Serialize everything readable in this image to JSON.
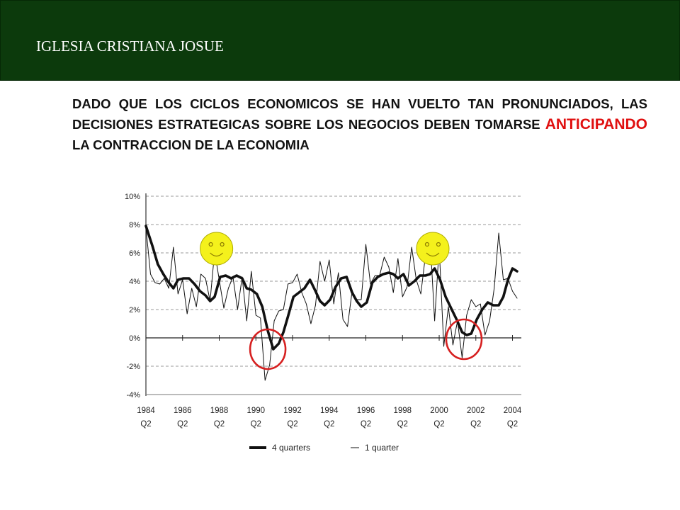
{
  "header": {
    "title": "IGLESIA CRISTIANA JOSUE"
  },
  "body": {
    "text_before": "DADO QUE LOS CICLOS ECONOMICOS SE HAN VUELTO TAN PRONUNCIADOS, LAS DECISIONES ESTRATEGICAS SOBRE LOS NEGOCIOS DEBEN TOMARSE",
    "emphasis": "ANTICIPANDO",
    "text_after": "LA CONTRACCION DE LA ECONOMIA"
  },
  "colors": {
    "header_bg": "#0c3a0c",
    "emphasis": "#e01010",
    "circle": "#d62020",
    "smiley": "#f4f11c"
  },
  "icons": [
    "smiley-face-icon",
    "red-circle-highlight"
  ],
  "chart_data": {
    "type": "line",
    "y_tick_labels": [
      "10%",
      "8%",
      "6%",
      "4%",
      "2%",
      "0%",
      "-2%",
      "-4%"
    ],
    "y_ticks": [
      10,
      8,
      6,
      4,
      2,
      0,
      -2,
      -4
    ],
    "ylim": [
      -4,
      10
    ],
    "x_tick_labels": [
      [
        "1984",
        "Q2"
      ],
      [
        "1986",
        "Q2"
      ],
      [
        "1988",
        "Q2"
      ],
      [
        "1990",
        "Q2"
      ],
      [
        "1992",
        "Q2"
      ],
      [
        "1994",
        "Q2"
      ],
      [
        "1996",
        "Q2"
      ],
      [
        "1998",
        "Q2"
      ],
      [
        "2000",
        "Q2"
      ],
      [
        "2002",
        "Q2"
      ],
      [
        "2004",
        "Q2"
      ]
    ],
    "xlim": [
      1984.25,
      2004.5
    ],
    "grid": "horizontal dashed",
    "legend_position": "bottom",
    "series": [
      {
        "name": "4 quarters",
        "style": "thick",
        "points": [
          [
            1984.25,
            7.9
          ],
          [
            1984.6,
            6.5
          ],
          [
            1984.9,
            5.2
          ],
          [
            1985.2,
            4.5
          ],
          [
            1985.5,
            3.9
          ],
          [
            1985.75,
            3.5
          ],
          [
            1986.0,
            4.1
          ],
          [
            1986.3,
            4.2
          ],
          [
            1986.6,
            4.2
          ],
          [
            1986.9,
            3.8
          ],
          [
            1987.2,
            3.3
          ],
          [
            1987.5,
            3.0
          ],
          [
            1987.75,
            2.6
          ],
          [
            1988.0,
            2.9
          ],
          [
            1988.3,
            4.3
          ],
          [
            1988.6,
            4.4
          ],
          [
            1988.9,
            4.2
          ],
          [
            1989.2,
            4.4
          ],
          [
            1989.5,
            4.2
          ],
          [
            1989.75,
            3.5
          ],
          [
            1990.0,
            3.4
          ],
          [
            1990.3,
            3.1
          ],
          [
            1990.6,
            2.2
          ],
          [
            1990.9,
            0.5
          ],
          [
            1991.2,
            -0.8
          ],
          [
            1991.5,
            -0.4
          ],
          [
            1991.75,
            0.4
          ],
          [
            1992.0,
            1.5
          ],
          [
            1992.3,
            2.9
          ],
          [
            1992.6,
            3.2
          ],
          [
            1992.9,
            3.5
          ],
          [
            1993.2,
            4.1
          ],
          [
            1993.5,
            3.3
          ],
          [
            1993.75,
            2.6
          ],
          [
            1994.0,
            2.3
          ],
          [
            1994.3,
            2.7
          ],
          [
            1994.6,
            3.6
          ],
          [
            1994.9,
            4.2
          ],
          [
            1995.2,
            4.3
          ],
          [
            1995.5,
            3.2
          ],
          [
            1995.75,
            2.6
          ],
          [
            1996.0,
            2.2
          ],
          [
            1996.3,
            2.5
          ],
          [
            1996.6,
            3.9
          ],
          [
            1996.9,
            4.3
          ],
          [
            1997.2,
            4.5
          ],
          [
            1997.5,
            4.6
          ],
          [
            1997.75,
            4.5
          ],
          [
            1998.0,
            4.2
          ],
          [
            1998.3,
            4.5
          ],
          [
            1998.6,
            3.7
          ],
          [
            1998.9,
            4.0
          ],
          [
            1999.2,
            4.4
          ],
          [
            1999.5,
            4.4
          ],
          [
            1999.75,
            4.5
          ],
          [
            2000.0,
            4.9
          ],
          [
            2000.3,
            4.1
          ],
          [
            2000.6,
            2.9
          ],
          [
            2000.9,
            2.1
          ],
          [
            2001.2,
            1.3
          ],
          [
            2001.5,
            0.4
          ],
          [
            2001.75,
            0.2
          ],
          [
            2002.0,
            0.3
          ],
          [
            2002.3,
            1.3
          ],
          [
            2002.6,
            2.0
          ],
          [
            2002.9,
            2.5
          ],
          [
            2003.2,
            2.3
          ],
          [
            2003.5,
            2.3
          ],
          [
            2003.75,
            2.9
          ],
          [
            2004.0,
            4.1
          ],
          [
            2004.25,
            4.9
          ],
          [
            2004.5,
            4.7
          ]
        ]
      },
      {
        "name": "1 quarter",
        "style": "thin",
        "points": [
          [
            1984.25,
            7.8
          ],
          [
            1984.5,
            4.5
          ],
          [
            1984.75,
            3.9
          ],
          [
            1985.0,
            3.8
          ],
          [
            1985.25,
            4.2
          ],
          [
            1985.5,
            3.5
          ],
          [
            1985.75,
            6.4
          ],
          [
            1986.0,
            3.1
          ],
          [
            1986.25,
            4.1
          ],
          [
            1986.5,
            1.7
          ],
          [
            1986.75,
            3.5
          ],
          [
            1987.0,
            2.2
          ],
          [
            1987.25,
            4.5
          ],
          [
            1987.5,
            4.2
          ],
          [
            1987.75,
            2.6
          ],
          [
            1988.0,
            6.1
          ],
          [
            1988.25,
            4.1
          ],
          [
            1988.5,
            2.1
          ],
          [
            1988.75,
            3.5
          ],
          [
            1989.0,
            4.3
          ],
          [
            1989.25,
            2.0
          ],
          [
            1989.5,
            4.3
          ],
          [
            1989.75,
            1.2
          ],
          [
            1990.0,
            4.7
          ],
          [
            1990.25,
            1.6
          ],
          [
            1990.5,
            1.4
          ],
          [
            1990.75,
            -3.0
          ],
          [
            1991.0,
            -1.9
          ],
          [
            1991.25,
            1.2
          ],
          [
            1991.5,
            1.9
          ],
          [
            1991.75,
            2.0
          ],
          [
            1992.0,
            3.8
          ],
          [
            1992.25,
            3.9
          ],
          [
            1992.5,
            4.5
          ],
          [
            1992.75,
            3.2
          ],
          [
            1993.0,
            2.4
          ],
          [
            1993.25,
            1.0
          ],
          [
            1993.5,
            2.3
          ],
          [
            1993.75,
            5.4
          ],
          [
            1994.0,
            4.0
          ],
          [
            1994.25,
            5.5
          ],
          [
            1994.5,
            2.4
          ],
          [
            1994.75,
            4.6
          ],
          [
            1995.0,
            1.3
          ],
          [
            1995.25,
            0.8
          ],
          [
            1995.5,
            3.3
          ],
          [
            1995.75,
            2.7
          ],
          [
            1996.0,
            2.7
          ],
          [
            1996.25,
            6.6
          ],
          [
            1996.5,
            3.8
          ],
          [
            1996.75,
            4.4
          ],
          [
            1997.0,
            4.4
          ],
          [
            1997.25,
            5.7
          ],
          [
            1997.5,
            5.0
          ],
          [
            1997.75,
            3.2
          ],
          [
            1998.0,
            5.6
          ],
          [
            1998.25,
            2.9
          ],
          [
            1998.5,
            3.6
          ],
          [
            1998.75,
            6.4
          ],
          [
            1999.0,
            4.1
          ],
          [
            1999.25,
            3.1
          ],
          [
            1999.5,
            5.8
          ],
          [
            1999.75,
            7.1
          ],
          [
            2000.0,
            1.2
          ],
          [
            2000.25,
            6.4
          ],
          [
            2000.5,
            -0.6
          ],
          [
            2000.75,
            2.2
          ],
          [
            2001.0,
            -0.5
          ],
          [
            2001.25,
            1.2
          ],
          [
            2001.5,
            -1.4
          ],
          [
            2001.75,
            1.6
          ],
          [
            2002.0,
            2.7
          ],
          [
            2002.25,
            2.2
          ],
          [
            2002.5,
            2.4
          ],
          [
            2002.75,
            0.2
          ],
          [
            2003.0,
            1.2
          ],
          [
            2003.25,
            3.5
          ],
          [
            2003.5,
            7.4
          ],
          [
            2003.75,
            4.1
          ],
          [
            2004.0,
            4.2
          ],
          [
            2004.25,
            3.3
          ],
          [
            2004.5,
            2.8
          ]
        ]
      }
    ],
    "annotations": [
      {
        "type": "smiley",
        "x": 1988.1,
        "y": 6.3
      },
      {
        "type": "smiley",
        "x": 1999.9,
        "y": 6.3
      },
      {
        "type": "red-circle",
        "x": 1990.9,
        "y": -0.8
      },
      {
        "type": "red-circle",
        "x": 2001.6,
        "y": -0.1
      }
    ]
  }
}
